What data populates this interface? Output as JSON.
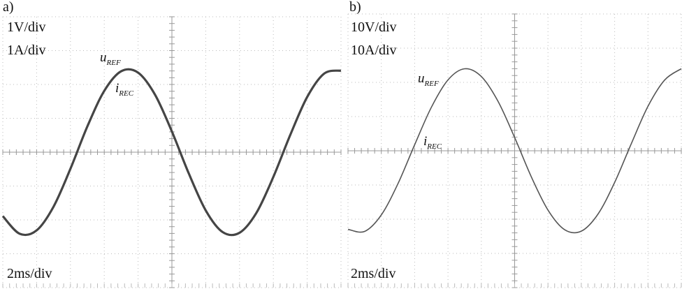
{
  "chart_data": [
    {
      "type": "line",
      "label": "a)",
      "scales": [
        "1V/div",
        "1A/div"
      ],
      "time_scale": "2ms/div",
      "annotations": [
        {
          "main": "u",
          "sub": "REF"
        },
        {
          "main": "i",
          "sub": "REC"
        }
      ],
      "x": [
        0,
        1,
        2,
        3,
        4,
        5,
        6,
        7,
        8,
        9,
        10,
        11,
        12,
        13,
        14,
        15,
        16,
        17,
        18,
        19,
        20
      ],
      "series": [
        {
          "color": "#454545",
          "values": [
            -1.89,
            -2.41,
            -2.31,
            -1.61,
            -0.49,
            0.76,
            1.81,
            2.39,
            2.35,
            1.7,
            0.61,
            -0.63,
            -1.72,
            -2.36,
            -2.38,
            -1.79,
            -0.73,
            0.51,
            1.63,
            2.32,
            2.41
          ]
        }
      ],
      "xlim": [
        0,
        20
      ],
      "ylim": [
        -4,
        4
      ],
      "xticks": [
        0,
        2,
        4,
        6,
        8,
        10,
        12,
        14,
        16,
        18,
        20
      ],
      "yticks": [
        -4,
        -3,
        -2,
        -1,
        0,
        1,
        2,
        3,
        4
      ],
      "grid": true
    },
    {
      "type": "line",
      "label": "b)",
      "scales": [
        "10V/div",
        "10A/div"
      ],
      "time_scale": "2ms/div",
      "annotations": [
        {
          "main": "u",
          "sub": "REF"
        },
        {
          "main": "i",
          "sub": "REC"
        }
      ],
      "x": [
        0,
        1,
        2,
        3,
        4,
        5,
        6,
        7,
        8,
        9,
        10,
        11,
        12,
        13,
        14,
        15,
        16,
        17,
        18,
        19,
        20
      ],
      "series": [
        {
          "color": "#555555",
          "values": [
            -22.97,
            -23.57,
            -18.75,
            -9.61,
            1.76,
            12.69,
            20.72,
            23.98,
            21.72,
            14.48,
            3.88,
            -7.62,
            -17.33,
            -23.07,
            -23.5,
            -18.52,
            -9.26,
            2.09,
            13.0,
            20.68,
            23.99
          ]
        }
      ],
      "xlim": [
        0,
        20
      ],
      "ylim": [
        -40,
        40
      ],
      "xticks": [
        0,
        2,
        4,
        6,
        8,
        10,
        12,
        14,
        16,
        18,
        20
      ],
      "yticks": [
        -40,
        -30,
        -20,
        -10,
        0,
        10,
        20,
        30,
        40
      ],
      "grid": true
    }
  ]
}
